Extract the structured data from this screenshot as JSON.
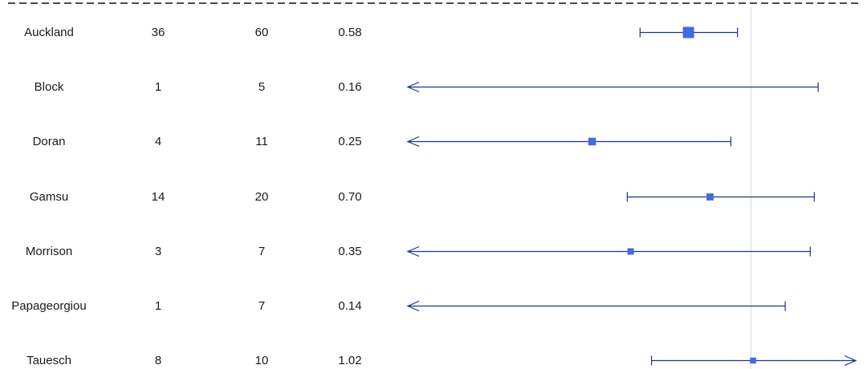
{
  "chart_data": {
    "type": "forest",
    "title": "",
    "xlabel": "",
    "reference_line": 1.0,
    "scale": "log",
    "rows": [
      {
        "study": "Auckland",
        "n1": "36",
        "n2": "60",
        "or_text": "0.58",
        "or": 0.58,
        "lo": 0.38,
        "hi": 0.89,
        "lo_truncated": false,
        "hi_truncated": false,
        "weight": 1.0
      },
      {
        "study": "Block",
        "n1": "1",
        "n2": "5",
        "or_text": "0.16",
        "or": 0.16,
        "lo": 0.05,
        "hi": 1.8,
        "lo_truncated": true,
        "hi_truncated": false,
        "weight": 0.0
      },
      {
        "study": "Doran",
        "n1": "4",
        "n2": "11",
        "or_text": "0.25",
        "or": 0.25,
        "lo": 0.05,
        "hi": 0.84,
        "lo_truncated": true,
        "hi_truncated": false,
        "weight": 0.55
      },
      {
        "study": "Gamsu",
        "n1": "14",
        "n2": "20",
        "or_text": "0.70",
        "or": 0.7,
        "lo": 0.34,
        "hi": 1.74,
        "lo_truncated": false,
        "hi_truncated": false,
        "weight": 0.48
      },
      {
        "study": "Morrison",
        "n1": "3",
        "n2": "7",
        "or_text": "0.35",
        "or": 0.35,
        "lo": 0.05,
        "hi": 1.68,
        "lo_truncated": true,
        "hi_truncated": false,
        "weight": 0.4
      },
      {
        "study": "Papageorgiou",
        "n1": "1",
        "n2": "7",
        "or_text": "0.14",
        "or": 0.14,
        "lo": 0.05,
        "hi": 1.35,
        "lo_truncated": true,
        "hi_truncated": false,
        "weight": 0.0
      },
      {
        "study": "Tauesch",
        "n1": "8",
        "n2": "10",
        "or_text": "1.02",
        "or": 1.02,
        "lo": 0.42,
        "hi": 2.5,
        "lo_truncated": false,
        "hi_truncated": true,
        "weight": 0.35
      }
    ],
    "colors": {
      "ci_line": "#22308f",
      "box": "#4169e1",
      "reference": "#d7d7e3",
      "top_rule": "#111111"
    }
  }
}
